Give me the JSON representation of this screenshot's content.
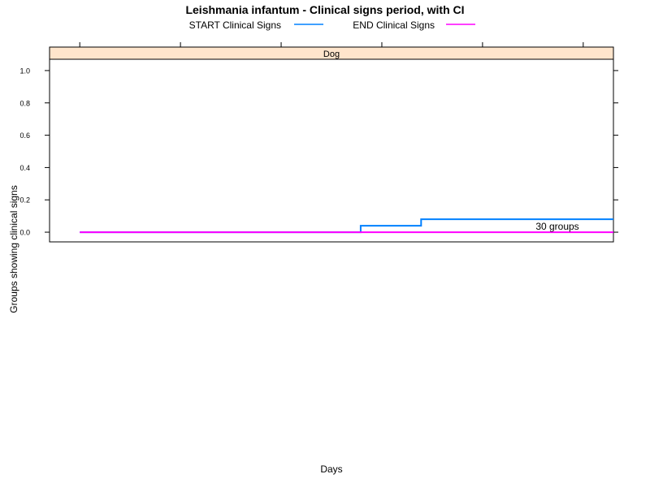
{
  "chart_data": {
    "type": "line",
    "title": "Leishmania infantum - Clinical signs period, with CI",
    "xlabel": "Days",
    "ylabel": "Groups showing clinical signs",
    "panel": "Dog",
    "annotation": "30 groups",
    "ylim": [
      -0.06,
      1.07
    ],
    "yticks": [
      "0.0",
      "0.2",
      "0.4",
      "0.6",
      "0.8",
      "1.0"
    ],
    "ytick_values": [
      0,
      0.2,
      0.4,
      0.6,
      0.8,
      1.0
    ],
    "xlim": [
      -0.6,
      10.6
    ],
    "xticks_count": 6,
    "grid": false,
    "legend_position": "top",
    "series": [
      {
        "name": "START Clinical Signs",
        "color": "#0080ff",
        "step": true,
        "x": [
          0,
          5.58,
          5.58,
          6.78,
          6.78,
          10.6
        ],
        "y": [
          0,
          0,
          0.04,
          0.04,
          0.08,
          0.08
        ]
      },
      {
        "name": "END Clinical Signs",
        "color": "#ff00ff",
        "step": true,
        "x": [
          0,
          10.6
        ],
        "y": [
          0,
          0
        ]
      }
    ],
    "strip_color": "#ffe5cc"
  }
}
